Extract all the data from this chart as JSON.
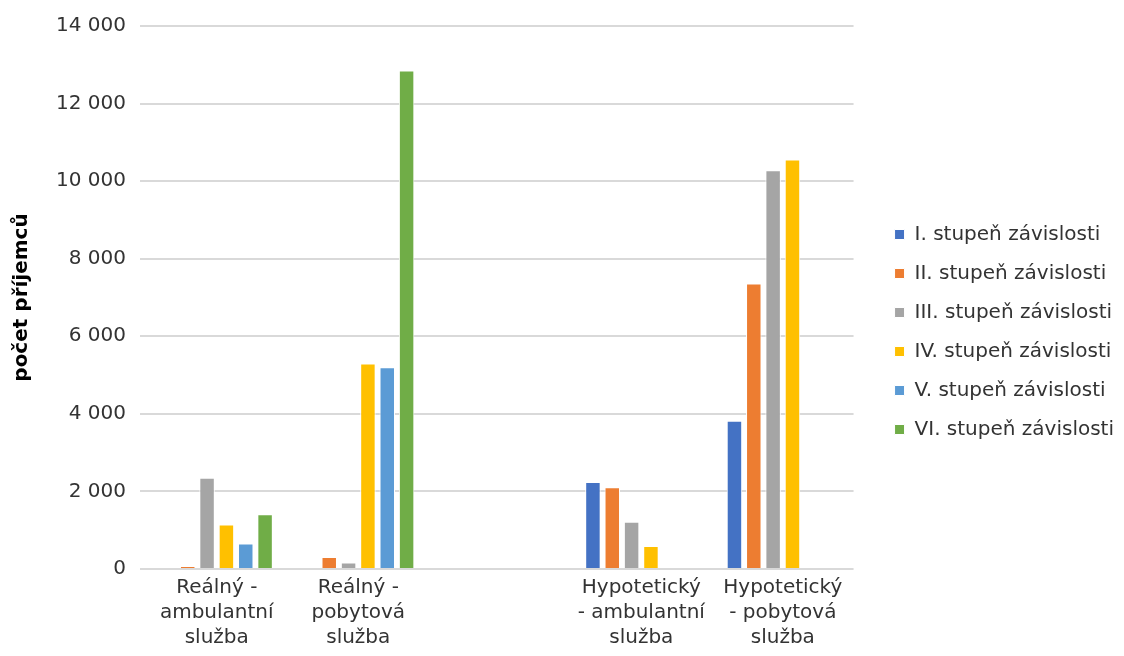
{
  "chart_data": {
    "type": "bar",
    "ylabel": "počet příjemců",
    "categories": [
      "Reálný - ambulantní služba",
      "Reálný - pobytová služba",
      null,
      "Hypotetický - ambulantní služba",
      "Hypotetický - pobytová služba"
    ],
    "series": [
      {
        "name": "I. stupeň závislosti",
        "color": "#4472c4",
        "values": [
          null,
          null,
          null,
          2240,
          3820
        ]
      },
      {
        "name": "II. stupeň závislosti",
        "color": "#ed7d31",
        "values": [
          80,
          310,
          null,
          2110,
          7360
        ]
      },
      {
        "name": "III. stupeň závislosti",
        "color": "#a5a5a5",
        "values": [
          2350,
          170,
          null,
          1220,
          10280
        ]
      },
      {
        "name": "IV. stupeň závislosti",
        "color": "#ffc000",
        "values": [
          1150,
          5300,
          null,
          590,
          10560
        ]
      },
      {
        "name": "V. stupeň závislosti",
        "color": "#5b9bd5",
        "values": [
          660,
          5200,
          null,
          null,
          null
        ]
      },
      {
        "name": "VI. stupeň závislosti",
        "color": "#70ad47",
        "values": [
          1410,
          12850,
          null,
          null,
          null
        ]
      }
    ],
    "ylim": [
      0,
      14000
    ],
    "yticks": [
      0,
      {
        "value": 2000,
        "label": "2 000"
      },
      {
        "value": 4000,
        "label": "4 000"
      },
      {
        "value": 6000,
        "label": "6 000"
      },
      {
        "value": 8000,
        "label": "8 000"
      },
      {
        "value": 10000,
        "label": "10 000"
      },
      {
        "value": 12000,
        "label": "12 000"
      },
      {
        "value": 14000,
        "label": "14 000"
      }
    ],
    "grid": "y",
    "legend": "right"
  }
}
